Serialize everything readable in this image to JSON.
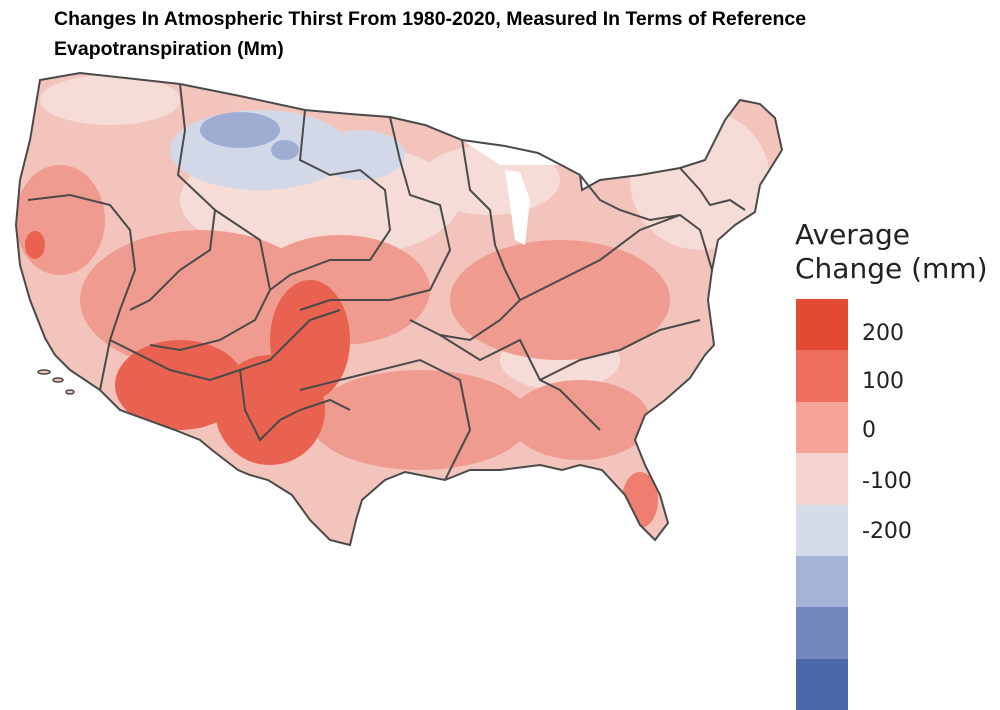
{
  "title": "Changes In Atmospheric Thirst From 1980-2020, Measured In Terms of Reference Evapotranspiration (Mm)",
  "legend": {
    "title_line1": "Average",
    "title_line2": "Change (mm)",
    "ticks": [
      "200",
      "100",
      "0",
      "-100",
      "-200"
    ],
    "colors": [
      "#e34a33",
      "#e34a33",
      "#ee6f5e",
      "#ee6f5e",
      "#f6a398",
      "#f6a398",
      "#f5d3cf",
      "#f5d3cf",
      "#d6dbea",
      "#d6dbea",
      "#a7b3d6",
      "#a7b3d6",
      "#7387bf",
      "#7387bf",
      "#4a69a8",
      "#4a69a8"
    ]
  },
  "map": {
    "region": "Contiguous United States",
    "fill_colors": {
      "base": "#f3c4bc",
      "light": "#f6dcd7",
      "medium": "#f09b8f",
      "strong": "#e9624f",
      "cool": "#d3d8e8",
      "cool_dark": "#9fadd2",
      "border": "#4a4a4a"
    }
  }
}
